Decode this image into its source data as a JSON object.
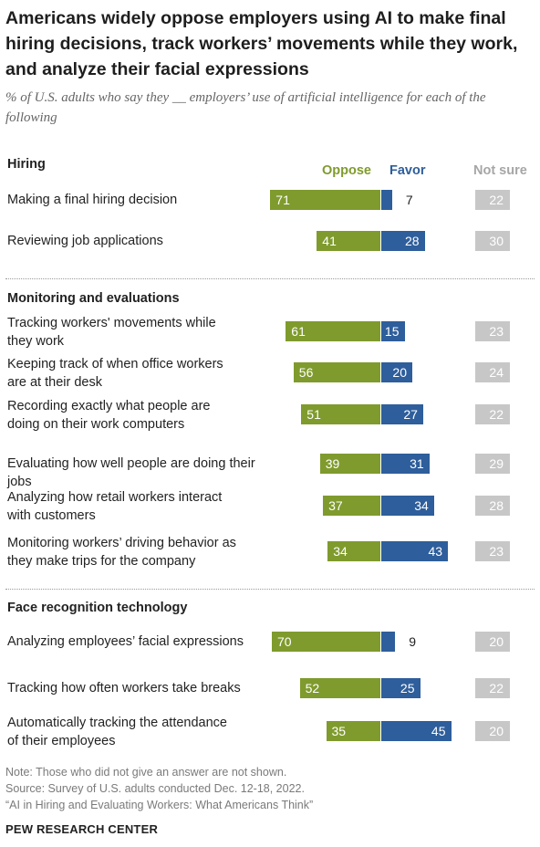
{
  "title": "Americans widely oppose employers using AI to make final hiring decisions, track workers’ movements while they work, and analyze their facial expressions",
  "subtitle": "% of U.S. adults who say they __ employers’ use of artificial intelligence for each of the following",
  "colors": {
    "oppose": "#7f9b2d",
    "favor": "#2e5e9b",
    "not_sure": "#c7c7c7"
  },
  "chart_data": {
    "type": "bar",
    "stacked": "diverging",
    "legend": [
      "Oppose",
      "Favor",
      "Not sure"
    ],
    "series": [
      {
        "name": "Oppose",
        "values": [
          71,
          41,
          61,
          56,
          51,
          39,
          37,
          34,
          70,
          52,
          35
        ]
      },
      {
        "name": "Favor",
        "values": [
          7,
          28,
          15,
          20,
          27,
          31,
          34,
          43,
          9,
          25,
          45
        ]
      },
      {
        "name": "Not sure",
        "values": [
          22,
          30,
          23,
          24,
          22,
          29,
          28,
          23,
          20,
          22,
          20
        ]
      }
    ],
    "groups": [
      {
        "title": "Hiring",
        "rows": [
          {
            "label": [
              "Making a final hiring decision"
            ],
            "oppose": 71,
            "favor": 7,
            "not_sure": 22
          },
          {
            "label": [
              "Reviewing job applications"
            ],
            "oppose": 41,
            "favor": 28,
            "not_sure": 30
          }
        ]
      },
      {
        "title": "Monitoring and evaluations",
        "rows": [
          {
            "label": [
              "Tracking workers' movements while",
              "they work"
            ],
            "oppose": 61,
            "favor": 15,
            "not_sure": 23
          },
          {
            "label": [
              "Keeping track of when office workers",
              "are at their desk"
            ],
            "oppose": 56,
            "favor": 20,
            "not_sure": 24
          },
          {
            "label": [
              "Recording exactly what people are",
              "doing on their work computers"
            ],
            "oppose": 51,
            "favor": 27,
            "not_sure": 22
          },
          {
            "label": [
              "Evaluating how well people are doing their jobs"
            ],
            "oppose": 39,
            "favor": 31,
            "not_sure": 29
          },
          {
            "label": [
              "Analyzing how retail workers interact",
              "with customers"
            ],
            "oppose": 37,
            "favor": 34,
            "not_sure": 28
          },
          {
            "label": [
              "Monitoring workers’ driving behavior as",
              "they make trips for the company"
            ],
            "oppose": 34,
            "favor": 43,
            "not_sure": 23
          }
        ]
      },
      {
        "title": "Face recognition technology",
        "rows": [
          {
            "label": [
              "Analyzing employees’ facial expressions"
            ],
            "oppose": 70,
            "favor": 9,
            "not_sure": 20
          },
          {
            "label": [
              "Tracking how often workers take breaks"
            ],
            "oppose": 52,
            "favor": 25,
            "not_sure": 22
          },
          {
            "label": [
              "Automatically tracking the attendance",
              "of their employees"
            ],
            "oppose": 35,
            "favor": 45,
            "not_sure": 20
          }
        ]
      }
    ]
  },
  "footer": {
    "note": "Note: Those who did not give an answer are not shown.",
    "source": "Source: Survey of U.S. adults conducted Dec. 12-18, 2022.",
    "report": "“AI in Hiring and Evaluating Workers: What Americans Think”",
    "brand": "PEW RESEARCH CENTER"
  }
}
